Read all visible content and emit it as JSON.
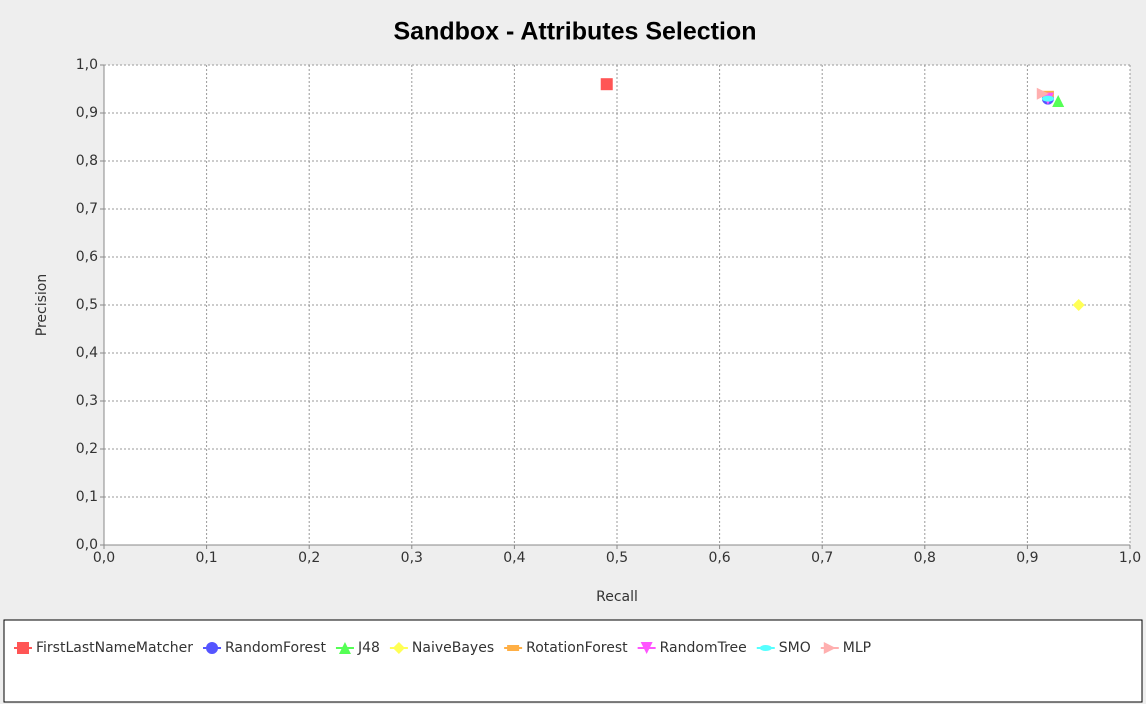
{
  "chart_data": {
    "type": "scatter",
    "title": "Sandbox - Attributes Selection",
    "x_label": "Recall",
    "y_label": "Precision",
    "xlim": [
      0,
      1
    ],
    "ylim": [
      0,
      1
    ],
    "xticks": [
      {
        "value": 0,
        "label": "0,0"
      },
      {
        "value": 0.1,
        "label": "0,1"
      },
      {
        "value": 0.2,
        "label": "0,2"
      },
      {
        "value": 0.3,
        "label": "0,3"
      },
      {
        "value": 0.4,
        "label": "0,4"
      },
      {
        "value": 0.5,
        "label": "0,5"
      },
      {
        "value": 0.6,
        "label": "0,6"
      },
      {
        "value": 0.7,
        "label": "0,7"
      },
      {
        "value": 0.8,
        "label": "0,8"
      },
      {
        "value": 0.9,
        "label": "0,9"
      },
      {
        "value": 1,
        "label": "1,0"
      }
    ],
    "yticks": [
      {
        "value": 0,
        "label": "0,0"
      },
      {
        "value": 0.1,
        "label": "0,1"
      },
      {
        "value": 0.2,
        "label": "0,2"
      },
      {
        "value": 0.3,
        "label": "0,3"
      },
      {
        "value": 0.4,
        "label": "0,4"
      },
      {
        "value": 0.5,
        "label": "0,5"
      },
      {
        "value": 0.6,
        "label": "0,6"
      },
      {
        "value": 0.7,
        "label": "0,7"
      },
      {
        "value": 0.8,
        "label": "0,8"
      },
      {
        "value": 0.9,
        "label": "0,9"
      },
      {
        "value": 1,
        "label": "1,0"
      }
    ],
    "grid": true,
    "legend": "bottom",
    "series": [
      {
        "name": "FirstLastNameMatcher",
        "color": "#ff5555",
        "marker": "square",
        "x": [
          0.49
        ],
        "values": [
          0.96
        ]
      },
      {
        "name": "RandomForest",
        "color": "#5555ff",
        "marker": "circle",
        "x": [
          0.92
        ],
        "values": [
          0.93
        ]
      },
      {
        "name": "J48",
        "color": "#55ff55",
        "marker": "triangle-up",
        "x": [
          0.93
        ],
        "values": [
          0.925
        ]
      },
      {
        "name": "NaiveBayes",
        "color": "#ffff55",
        "marker": "diamond",
        "x": [
          0.95
        ],
        "values": [
          0.5
        ]
      },
      {
        "name": "RotationForest",
        "color": "#ffaf45",
        "marker": "hrect",
        "x": [
          0.92
        ],
        "values": [
          0.94
        ]
      },
      {
        "name": "RandomTree",
        "color": "#ff55ff",
        "marker": "triangle-down",
        "x": [
          0.92
        ],
        "values": [
          0.93
        ]
      },
      {
        "name": "SMO",
        "color": "#55ffff",
        "marker": "ellipse",
        "x": [
          0.92
        ],
        "values": [
          0.93
        ]
      },
      {
        "name": "MLP",
        "color": "#ffafaf",
        "marker": "triangle-right",
        "x": [
          0.915
        ],
        "values": [
          0.94
        ]
      }
    ]
  }
}
